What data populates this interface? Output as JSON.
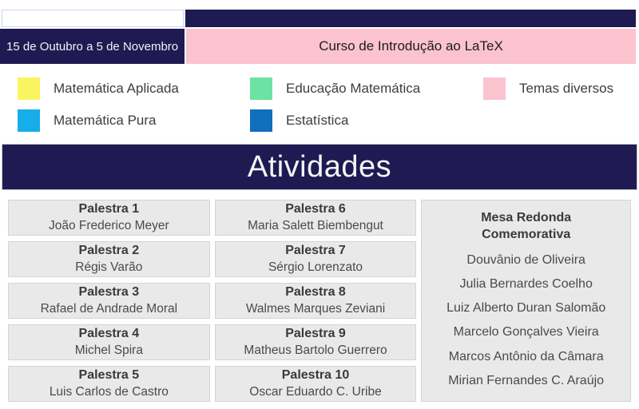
{
  "colors": {
    "navy": "#201a52",
    "pink": "#fbc3ce",
    "yellow": "#faf55e",
    "cyan": "#17ade9",
    "green": "#6ce3a2",
    "blue": "#1170bd",
    "card_gray": "#e9e9e9"
  },
  "header": {
    "date_range": "15 de Outubro a 5 de Novembro",
    "course_title": "Curso de Introdução ao LaTeX"
  },
  "legend": {
    "items": [
      {
        "label": "Matemática Aplicada",
        "color": "#faf55e"
      },
      {
        "label": "Matemática Pura",
        "color": "#17ade9"
      },
      {
        "label": "Educação Matemática",
        "color": "#6ce3a2"
      },
      {
        "label": "Estatística",
        "color": "#1170bd"
      },
      {
        "label": "Temas diversos",
        "color": "#fbc3ce"
      }
    ]
  },
  "section_title": "Atividades",
  "activities": {
    "column1": [
      {
        "title": "Palestra 1",
        "speaker": "João Frederico Meyer"
      },
      {
        "title": "Palestra 2",
        "speaker": "Régis Varão"
      },
      {
        "title": "Palestra 3",
        "speaker": "Rafael de Andrade Moral"
      },
      {
        "title": "Palestra 4",
        "speaker": "Michel Spira"
      },
      {
        "title": "Palestra 5",
        "speaker": "Luis Carlos de Castro"
      }
    ],
    "column2": [
      {
        "title": "Palestra 6",
        "speaker": "Maria Salett Biembengut"
      },
      {
        "title": "Palestra 7",
        "speaker": "Sérgio Lorenzato"
      },
      {
        "title": "Palestra 8",
        "speaker": "Walmes Marques Zeviani"
      },
      {
        "title": "Palestra 9",
        "speaker": "Matheus Bartolo Guerrero"
      },
      {
        "title": "Palestra 10",
        "speaker": "Oscar Eduardo C. Uribe"
      }
    ],
    "roundtable": {
      "title": "Mesa Redonda\nComemorativa",
      "participants": [
        "Douvânio de Oliveira",
        "Julia Bernardes Coelho",
        "Luiz Alberto Duran Salomão",
        "Marcelo Gonçalves Vieira",
        "Marcos Antônio da Câmara",
        "Mirian Fernandes C. Araújo"
      ]
    }
  }
}
